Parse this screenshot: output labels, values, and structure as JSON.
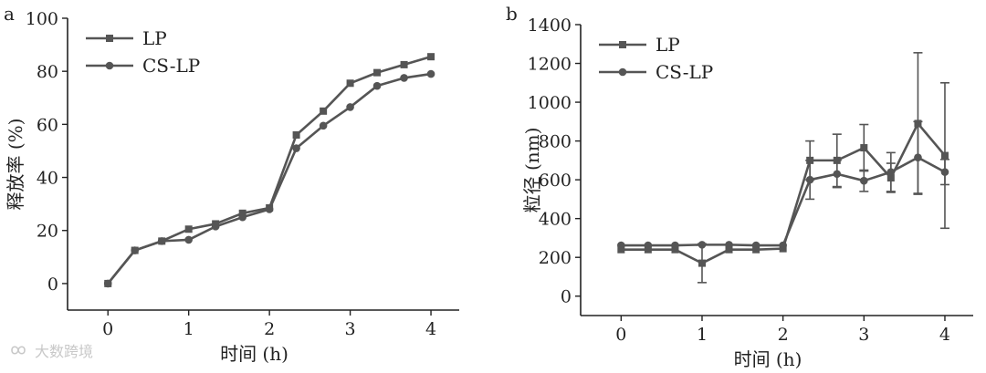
{
  "colors": {
    "line": "#555555",
    "axis": "#222222"
  },
  "watermark": {
    "text": "大数跨境",
    "icon": "infinity-logo-icon"
  },
  "chart_data": [
    {
      "panel": "a",
      "type": "line",
      "xlabel": "时间 (h)",
      "ylabel": "释放率 (%)",
      "xlim": [
        -0.5,
        4.35
      ],
      "ylim": [
        -10,
        100
      ],
      "xticks": [
        0,
        1,
        2,
        3,
        4
      ],
      "yticks": [
        0,
        20,
        40,
        60,
        80,
        100
      ],
      "legend_position": "top-left",
      "series": [
        {
          "name": "LP",
          "marker": "square",
          "x": [
            0,
            0.333,
            0.667,
            1,
            1.333,
            1.667,
            2,
            2.333,
            2.667,
            3,
            3.333,
            3.667,
            4
          ],
          "y": [
            0,
            12.5,
            16,
            20.5,
            22.5,
            26.5,
            28.5,
            56,
            65,
            75.5,
            79.5,
            82.5,
            85.5
          ]
        },
        {
          "name": "CS-LP",
          "marker": "circle",
          "x": [
            0,
            0.333,
            0.667,
            1,
            1.333,
            1.667,
            2,
            2.333,
            2.667,
            3,
            3.333,
            3.667,
            4
          ],
          "y": [
            0,
            12.5,
            16,
            16.5,
            21.5,
            25,
            28,
            51,
            59.5,
            66.5,
            74.5,
            77.5,
            79
          ]
        }
      ]
    },
    {
      "panel": "b",
      "type": "line",
      "xlabel": "时间 (h)",
      "ylabel": "粒径 (nm)",
      "xlim": [
        -0.5,
        4.35
      ],
      "ylim": [
        -100,
        1400
      ],
      "xticks": [
        0,
        1,
        2,
        3,
        4
      ],
      "yticks": [
        0,
        200,
        400,
        600,
        800,
        1000,
        1200,
        1400
      ],
      "legend_position": "top-left",
      "series": [
        {
          "name": "LP",
          "marker": "square",
          "x": [
            0,
            0.333,
            0.667,
            1,
            1.333,
            1.667,
            2,
            2.333,
            2.667,
            3,
            3.333,
            3.667,
            4
          ],
          "y": [
            240,
            240,
            240,
            170,
            240,
            240,
            245,
            700,
            700,
            765,
            610,
            890,
            725
          ],
          "error": [
            0,
            0,
            0,
            100,
            0,
            0,
            0,
            100,
            135,
            120,
            75,
            365,
            375
          ]
        },
        {
          "name": "CS-LP",
          "marker": "circle",
          "x": [
            0,
            0.333,
            0.667,
            1,
            1.333,
            1.667,
            2,
            2.333,
            2.667,
            3,
            3.333,
            3.667,
            4
          ],
          "y": [
            262,
            262,
            262,
            265,
            265,
            262,
            262,
            600,
            630,
            595,
            640,
            715,
            640
          ],
          "error": [
            0,
            0,
            0,
            0,
            0,
            0,
            0,
            100,
            70,
            55,
            100,
            185,
            65
          ]
        }
      ]
    }
  ]
}
